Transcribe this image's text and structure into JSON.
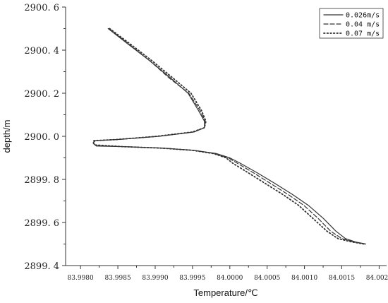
{
  "chart_data": {
    "type": "line",
    "xlabel": "Temperature/℃",
    "ylabel": "depth/m",
    "xlim": [
      83.9978,
      84.0021
    ],
    "ylim": [
      2899.4,
      2900.6
    ],
    "x_ticks": [
      83.998,
      83.9985,
      83.999,
      83.9995,
      84.0,
      84.0005,
      84.001,
      84.0015,
      84.002
    ],
    "x_tick_labels": [
      "83.9980",
      "83.9985",
      "83.9990",
      "83.9995",
      "84.0000",
      "84.0005",
      "84.0010",
      "84.0015",
      "84.0020"
    ],
    "y_ticks": [
      2899.4,
      2899.6,
      2899.8,
      2900.0,
      2900.2,
      2900.4,
      2900.6
    ],
    "y_tick_labels": [
      "2899. 4",
      "2899. 6",
      "2899. 8",
      "2900. 0",
      "2900. 2",
      "2900. 4",
      "2900. 6"
    ],
    "legend_position": "top-right",
    "series": [
      {
        "name": "0.026m/s",
        "style": "solid",
        "color": "#333333",
        "points": [
          [
            83.99837,
            2900.5
          ],
          [
            83.99863,
            2900.43
          ],
          [
            83.99893,
            2900.35
          ],
          [
            83.99921,
            2900.27
          ],
          [
            83.99944,
            2900.2
          ],
          [
            83.99958,
            2900.12
          ],
          [
            83.99966,
            2900.07
          ],
          [
            83.99966,
            2900.04
          ],
          [
            83.99952,
            2900.02
          ],
          [
            83.99905,
            2900.0
          ],
          [
            83.9985,
            2899.985
          ],
          [
            83.9982,
            2899.98
          ],
          [
            83.99817,
            2899.97
          ],
          [
            83.99821,
            2899.955
          ],
          [
            83.99858,
            2899.952
          ],
          [
            83.99911,
            2899.945
          ],
          [
            83.99952,
            2899.935
          ],
          [
            83.99982,
            2899.92
          ],
          [
            84.0,
            2899.9
          ],
          [
            84.00014,
            2899.875
          ],
          [
            84.00037,
            2899.83
          ],
          [
            84.00061,
            2899.78
          ],
          [
            84.00084,
            2899.73
          ],
          [
            84.00105,
            2899.68
          ],
          [
            84.00125,
            2899.62
          ],
          [
            84.00142,
            2899.56
          ],
          [
            84.00155,
            2899.525
          ],
          [
            84.00168,
            2899.51
          ],
          [
            84.00182,
            2899.5
          ]
        ]
      },
      {
        "name": "0.04 m/s",
        "style": "dashed",
        "color": "#333333",
        "points": [
          [
            83.99838,
            2900.5
          ],
          [
            83.99864,
            2900.43
          ],
          [
            83.99893,
            2900.35
          ],
          [
            83.99919,
            2900.27
          ],
          [
            83.99945,
            2900.2
          ],
          [
            83.9996,
            2900.12
          ],
          [
            83.99967,
            2900.07
          ],
          [
            83.99966,
            2900.04
          ],
          [
            83.99951,
            2900.02
          ],
          [
            83.99904,
            2900.0
          ],
          [
            83.99849,
            2899.985
          ],
          [
            83.99819,
            2899.98
          ],
          [
            83.99817,
            2899.97
          ],
          [
            83.9982,
            2899.957
          ],
          [
            83.99858,
            2899.952
          ],
          [
            83.9991,
            2899.945
          ],
          [
            83.99951,
            2899.935
          ],
          [
            83.9998,
            2899.92
          ],
          [
            83.99998,
            2899.9
          ],
          [
            84.0001,
            2899.875
          ],
          [
            84.00032,
            2899.83
          ],
          [
            84.00055,
            2899.78
          ],
          [
            84.00078,
            2899.73
          ],
          [
            84.00099,
            2899.68
          ],
          [
            84.00118,
            2899.62
          ],
          [
            84.00135,
            2899.56
          ],
          [
            84.0015,
            2899.525
          ],
          [
            84.00166,
            2899.51
          ],
          [
            84.00181,
            2899.5
          ]
        ]
      },
      {
        "name": "0.07 m/s",
        "style": "dotted",
        "color": "#333333",
        "points": [
          [
            83.99839,
            2900.5
          ],
          [
            83.99866,
            2900.43
          ],
          [
            83.99896,
            2900.35
          ],
          [
            83.99924,
            2900.27
          ],
          [
            83.99948,
            2900.2
          ],
          [
            83.99962,
            2900.12
          ],
          [
            83.99968,
            2900.07
          ],
          [
            83.99966,
            2900.04
          ],
          [
            83.9995,
            2900.02
          ],
          [
            83.99902,
            2900.0
          ],
          [
            83.99848,
            2899.985
          ],
          [
            83.99818,
            2899.98
          ],
          [
            83.99817,
            2899.97
          ],
          [
            83.99819,
            2899.96
          ],
          [
            83.99857,
            2899.952
          ],
          [
            83.99909,
            2899.945
          ],
          [
            83.9995,
            2899.935
          ],
          [
            83.99978,
            2899.92
          ],
          [
            83.99995,
            2899.9
          ],
          [
            84.00004,
            2899.875
          ],
          [
            84.00025,
            2899.83
          ],
          [
            84.00048,
            2899.78
          ],
          [
            84.00071,
            2899.73
          ],
          [
            84.00092,
            2899.68
          ],
          [
            84.00111,
            2899.62
          ],
          [
            84.0013,
            2899.56
          ],
          [
            84.00145,
            2899.525
          ],
          [
            84.00163,
            2899.51
          ],
          [
            84.0018,
            2899.5
          ]
        ]
      }
    ]
  }
}
